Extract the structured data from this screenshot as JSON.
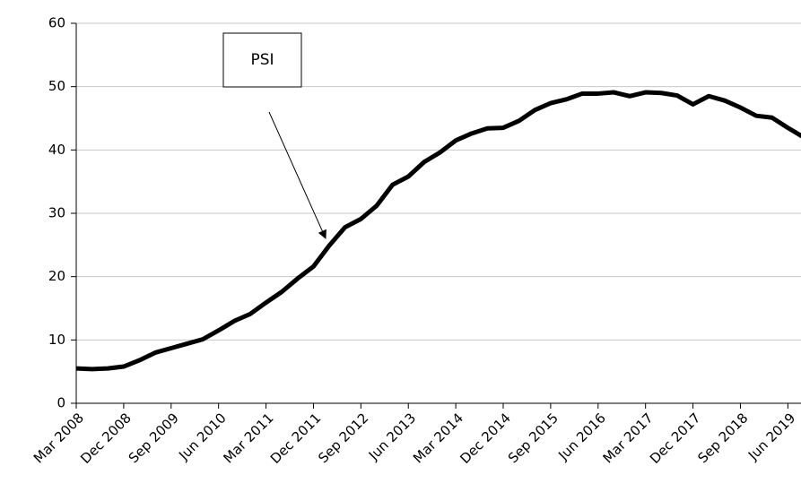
{
  "chart_data": {
    "type": "line",
    "annotation": "PSI",
    "categories": [
      "Mar 2008",
      null,
      null,
      "Dec 2008",
      null,
      null,
      "Sep 2009",
      null,
      null,
      "Jun 2010",
      null,
      null,
      "Mar 2011",
      null,
      null,
      "Dec 2011",
      null,
      null,
      "Sep 2012",
      null,
      null,
      "Jun 2013",
      null,
      null,
      "Mar 2014",
      null,
      null,
      "Dec 2014",
      null,
      null,
      "Sep 2015",
      null,
      null,
      "Jun 2016",
      null,
      null,
      "Mar 2017",
      null,
      null,
      "Dec 2017",
      null,
      null,
      "Sep 2018",
      null,
      null,
      "Jun 2019",
      null
    ],
    "series": [
      {
        "name": "PSI",
        "color": "#000000",
        "values": [
          5.5,
          5.4,
          5.5,
          5.8,
          6.8,
          8.0,
          8.7,
          9.4,
          10.1,
          11.5,
          13.0,
          14.1,
          15.9,
          17.6,
          19.7,
          21.6,
          24.9,
          27.8,
          29.1,
          31.2,
          34.5,
          35.8,
          38.1,
          39.6,
          41.5,
          42.6,
          43.4,
          43.5,
          44.6,
          46.3,
          47.4,
          48.0,
          48.9,
          48.9,
          49.1,
          48.5,
          49.1,
          49.0,
          48.6,
          47.2,
          48.5,
          47.8,
          46.7,
          45.4,
          45.1,
          43.5,
          42.0
        ]
      }
    ],
    "ylim": [
      0,
      60
    ],
    "yticks": [
      0,
      10,
      20,
      30,
      40,
      50,
      60
    ],
    "grid": true
  }
}
